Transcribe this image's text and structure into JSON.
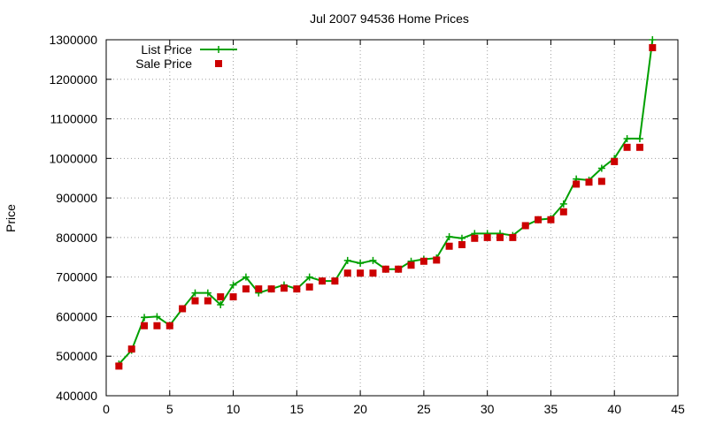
{
  "chart_data": {
    "type": "line",
    "title": "Jul 2007 94536 Home Prices",
    "xlabel": "",
    "ylabel": "Price",
    "xlim": [
      0,
      45
    ],
    "ylim": [
      400000,
      1300000
    ],
    "xticks": [
      0,
      5,
      10,
      15,
      20,
      25,
      30,
      35,
      40,
      45
    ],
    "yticks": [
      400000,
      500000,
      600000,
      700000,
      800000,
      900000,
      1000000,
      1100000,
      1200000,
      1300000
    ],
    "grid": true,
    "legend_position": "top-left",
    "x": [
      1,
      2,
      3,
      4,
      5,
      6,
      7,
      8,
      9,
      10,
      11,
      12,
      13,
      14,
      15,
      16,
      17,
      18,
      19,
      20,
      21,
      22,
      23,
      24,
      25,
      26,
      27,
      28,
      29,
      30,
      31,
      32,
      33,
      34,
      35,
      36,
      37,
      38,
      39,
      40,
      41,
      42,
      43
    ],
    "series": [
      {
        "name": "List Price",
        "style": "line-with-plus-markers",
        "color": "#00a000",
        "values": [
          480000,
          515000,
          598000,
          600000,
          578000,
          620000,
          660000,
          660000,
          630000,
          680000,
          700000,
          660000,
          670000,
          680000,
          670000,
          700000,
          690000,
          690000,
          742000,
          735000,
          742000,
          720000,
          720000,
          740000,
          745000,
          748000,
          802000,
          798000,
          810000,
          810000,
          810000,
          805000,
          830000,
          845000,
          848000,
          885000,
          948000,
          945000,
          975000,
          1000000,
          1050000,
          1050000,
          1300000
        ]
      },
      {
        "name": "Sale Price",
        "style": "square-markers",
        "color": "#cc0000",
        "values": [
          475000,
          518000,
          577000,
          577000,
          577000,
          620000,
          640000,
          640000,
          650000,
          650000,
          670000,
          670000,
          670000,
          672000,
          670000,
          675000,
          690000,
          690000,
          710000,
          710000,
          710000,
          720000,
          720000,
          730000,
          740000,
          743000,
          778000,
          782000,
          798000,
          800000,
          800000,
          800000,
          830000,
          845000,
          845000,
          865000,
          935000,
          940000,
          942000,
          992000,
          1028000,
          1028000,
          1280000
        ]
      }
    ]
  }
}
